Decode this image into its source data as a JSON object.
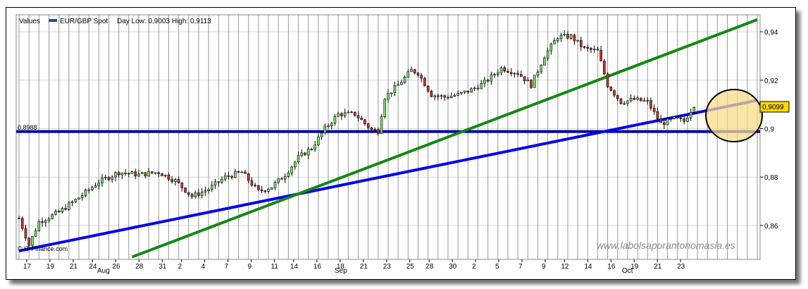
{
  "legend": {
    "values_label": "Values",
    "series_name": "EUR/GBP Spot",
    "day_stats": "Day Low: 0,9003 High: 0,9113"
  },
  "watermark": "www.labolsaporantonomasia.es",
  "source": "© IT-Finance.com",
  "colors": {
    "candle_up": "#7ddc6e",
    "candle_down": "#c0392b",
    "support_line": "#000099",
    "trend_blue": "#0000ee",
    "trend_green": "#118811",
    "highlight_fill": "#f5dc8a",
    "price_box": "#ffd700"
  },
  "chart_data": {
    "type": "candlestick",
    "title": "",
    "xlabel": "",
    "ylabel": "",
    "ylim": [
      0.846,
      0.947
    ],
    "y_ticks": [
      "0,86",
      "0,88",
      "0,9",
      "0,92",
      "0,94"
    ],
    "y_tick_values": [
      0.86,
      0.88,
      0.9,
      0.92,
      0.94
    ],
    "x_day_labels": [
      "17",
      "19",
      "21",
      "24",
      "26",
      "28",
      "31",
      "2",
      "4",
      "7",
      "9",
      "11",
      "14",
      "16",
      "18",
      "21",
      "23",
      "25",
      "28",
      "30",
      "2",
      "5",
      "7",
      "9",
      "12",
      "14",
      "16",
      "19",
      "21",
      "23"
    ],
    "x_month_labels": [
      "Aug",
      "Sep",
      "Oct"
    ],
    "grid": true,
    "support_level": {
      "label": "0,8988",
      "value": 0.8988
    },
    "last_price": {
      "label": "0,9099",
      "value": 0.9099
    },
    "keypoints": [
      [
        0,
        0.863
      ],
      [
        3,
        0.852
      ],
      [
        6,
        0.8615
      ],
      [
        12,
        0.8655
      ],
      [
        18,
        0.8715
      ],
      [
        24,
        0.878
      ],
      [
        30,
        0.882
      ],
      [
        36,
        0.881
      ],
      [
        42,
        0.882
      ],
      [
        47,
        0.8785
      ],
      [
        52,
        0.872
      ],
      [
        57,
        0.875
      ],
      [
        62,
        0.88
      ],
      [
        67,
        0.882
      ],
      [
        72,
        0.874
      ],
      [
        76,
        0.876
      ],
      [
        80,
        0.881
      ],
      [
        84,
        0.888
      ],
      [
        88,
        0.892
      ],
      [
        92,
        0.9
      ],
      [
        96,
        0.906
      ],
      [
        101,
        0.906
      ],
      [
        106,
        0.8995
      ],
      [
        108,
        0.899
      ],
      [
        110,
        0.913
      ],
      [
        114,
        0.918
      ],
      [
        118,
        0.924
      ],
      [
        120,
        0.923
      ],
      [
        124,
        0.914
      ],
      [
        128,
        0.913
      ],
      [
        132,
        0.914
      ],
      [
        136,
        0.916
      ],
      [
        140,
        0.919
      ],
      [
        145,
        0.925
      ],
      [
        150,
        0.923
      ],
      [
        154,
        0.918
      ],
      [
        158,
        0.93
      ],
      [
        162,
        0.938
      ],
      [
        166,
        0.938
      ],
      [
        170,
        0.933
      ],
      [
        174,
        0.932
      ],
      [
        177,
        0.918
      ],
      [
        181,
        0.911
      ],
      [
        185,
        0.912
      ],
      [
        189,
        0.911
      ],
      [
        193,
        0.902
      ],
      [
        197,
        0.904
      ],
      [
        200,
        0.903
      ],
      [
        203,
        0.9099
      ]
    ],
    "trendlines": [
      {
        "color": "trend_blue",
        "points": [
          [
            0,
            0.8495
          ],
          [
            222,
            0.9117
          ]
        ]
      },
      {
        "color": "trend_green",
        "points": [
          [
            34,
            0.847
          ],
          [
            222,
            0.945
          ]
        ]
      }
    ]
  }
}
